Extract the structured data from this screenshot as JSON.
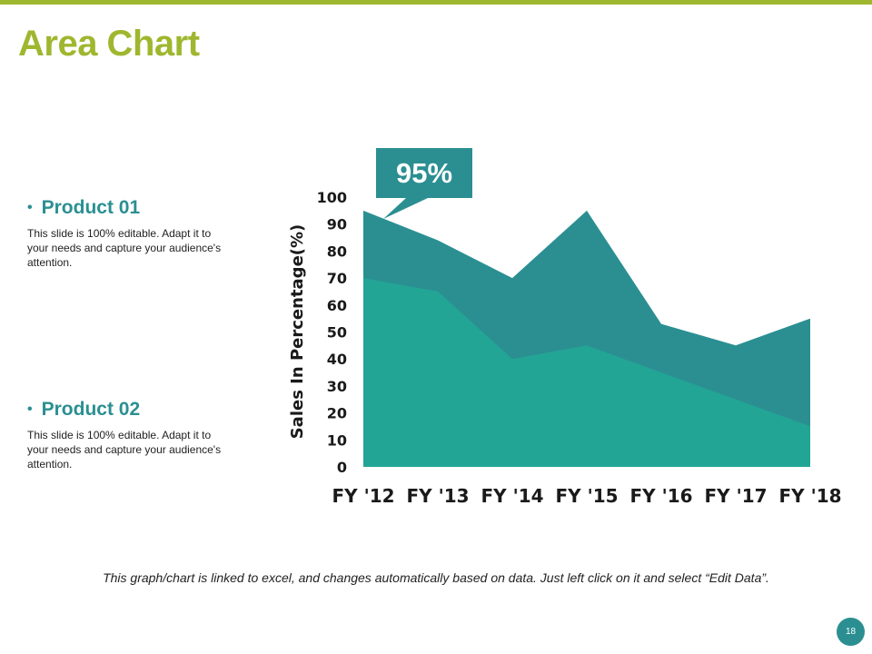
{
  "slide": {
    "title": "Area Chart",
    "footer_note": "This graph/chart is linked to excel, and changes automatically based on data. Just left click on it and select “Edit Data”.",
    "page_number": "18"
  },
  "colors": {
    "accent": "#9fb72f",
    "teal_dark": "#2b8f92",
    "teal_light": "#23a596",
    "text": "#1f1f1f"
  },
  "products": [
    {
      "bullet": "•",
      "label": "Product 01",
      "description": "This slide is 100% editable. Adapt it to your needs and capture your audience's attention."
    },
    {
      "bullet": "•",
      "label": "Product 02",
      "description": "This slide is 100% editable. Adapt it to your needs and capture your audience's attention."
    }
  ],
  "callout": {
    "label": "95%"
  },
  "chart_data": {
    "type": "area",
    "title": "",
    "xlabel": "",
    "ylabel": "Sales In Percentage(%)",
    "ylim": [
      0,
      100
    ],
    "yticks": [
      0,
      10,
      20,
      30,
      40,
      50,
      60,
      70,
      80,
      90,
      100
    ],
    "categories": [
      "FY '12",
      "FY '13",
      "FY '14",
      "FY '15",
      "FY '16",
      "FY '17",
      "FY '18"
    ],
    "series": [
      {
        "name": "Product 01",
        "color": "#2b8f92",
        "values": [
          95,
          84,
          70,
          95,
          53,
          45,
          55
        ]
      },
      {
        "name": "Product 02",
        "color": "#23a596",
        "values": [
          70,
          65,
          40,
          45,
          35,
          25,
          15
        ]
      }
    ],
    "annotations": [
      {
        "category": "FY '12",
        "series": "Product 01",
        "text": "95%"
      }
    ],
    "grid": false,
    "legend": "none"
  }
}
